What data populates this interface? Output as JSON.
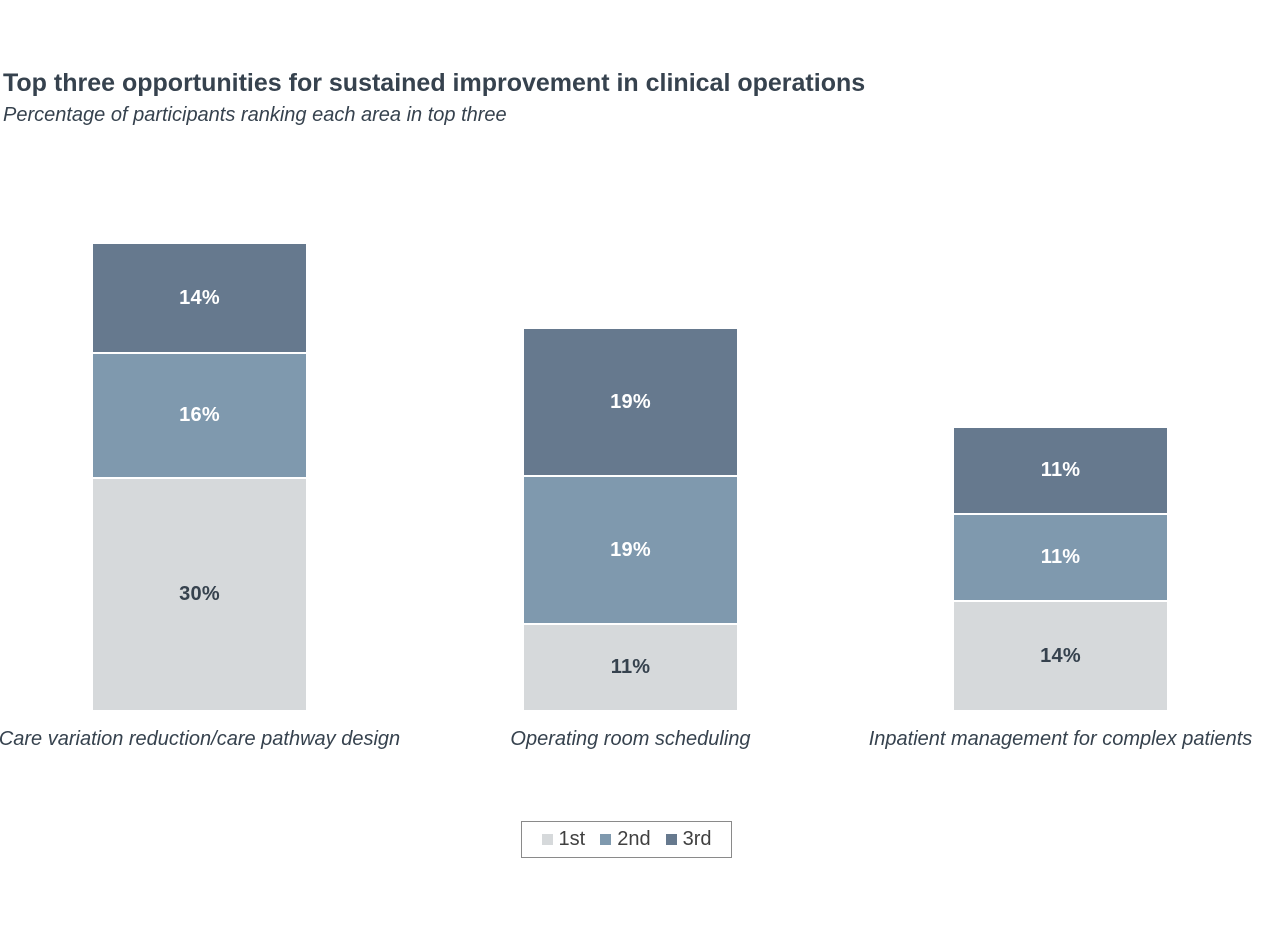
{
  "header": {
    "title": "Top three opportunities for sustained improvement in clinical operations",
    "subtitle": "Percentage of participants ranking each area in top three"
  },
  "chart_data": {
    "type": "bar",
    "stacked": true,
    "orientation": "vertical",
    "title": "Top three opportunities for sustained improvement in clinical operations",
    "subtitle": "Percentage of participants ranking each area in top three",
    "categories": [
      "Care variation reduction/care pathway design",
      "Operating room scheduling",
      "Inpatient management for complex patients"
    ],
    "series": [
      {
        "name": "1st",
        "color": "#d6d9db",
        "label_color": "#36424e",
        "values": [
          30,
          11,
          14
        ]
      },
      {
        "name": "2nd",
        "color": "#7f99ae",
        "label_color": "#ffffff",
        "values": [
          16,
          19,
          11
        ]
      },
      {
        "name": "3rd",
        "color": "#66798e",
        "label_color": "#ffffff",
        "values": [
          14,
          19,
          11
        ]
      }
    ],
    "stack_totals": [
      60,
      49,
      36
    ],
    "value_suffix": "%",
    "axes_visible": false,
    "grid": false,
    "legend": {
      "position": "bottom",
      "entries": [
        "1st",
        "2nd",
        "3rd"
      ]
    }
  },
  "colors": {
    "background": "#ffffff",
    "title_text": "#36424e",
    "legend_text": "#404040",
    "legend_border": "#8a8a8a",
    "segment_gap": "#ffffff"
  }
}
